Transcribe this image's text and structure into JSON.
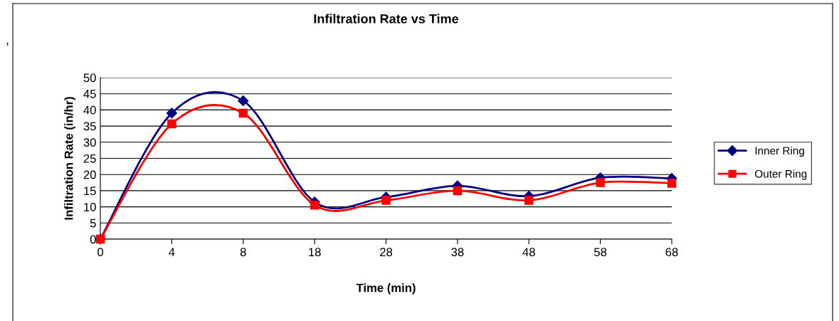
{
  "chart_data": {
    "type": "line",
    "title": "Infiltration Rate vs Time",
    "xlabel": "Time (min)",
    "ylabel": "Infiltration Rate (in/hr)",
    "categories": [
      "0",
      "4",
      "8",
      "18",
      "28",
      "38",
      "48",
      "58",
      "68"
    ],
    "series": [
      {
        "name": "Inner Ring",
        "color": "#000080",
        "marker": "diamond",
        "values": [
          0,
          39,
          42.8,
          11.5,
          13,
          16.5,
          13.3,
          19,
          18.8
        ]
      },
      {
        "name": "Outer Ring",
        "color": "#ff0000",
        "marker": "square",
        "values": [
          0,
          35.7,
          39,
          10.5,
          12,
          15,
          12,
          17.5,
          17.3
        ]
      }
    ],
    "ylim": [
      0,
      50
    ],
    "yticks": [
      0,
      5,
      10,
      15,
      20,
      25,
      30,
      35,
      40,
      45,
      50
    ],
    "grid": "y",
    "legend": "right",
    "line_style": "solid",
    "annotations": [
      ","
    ]
  }
}
